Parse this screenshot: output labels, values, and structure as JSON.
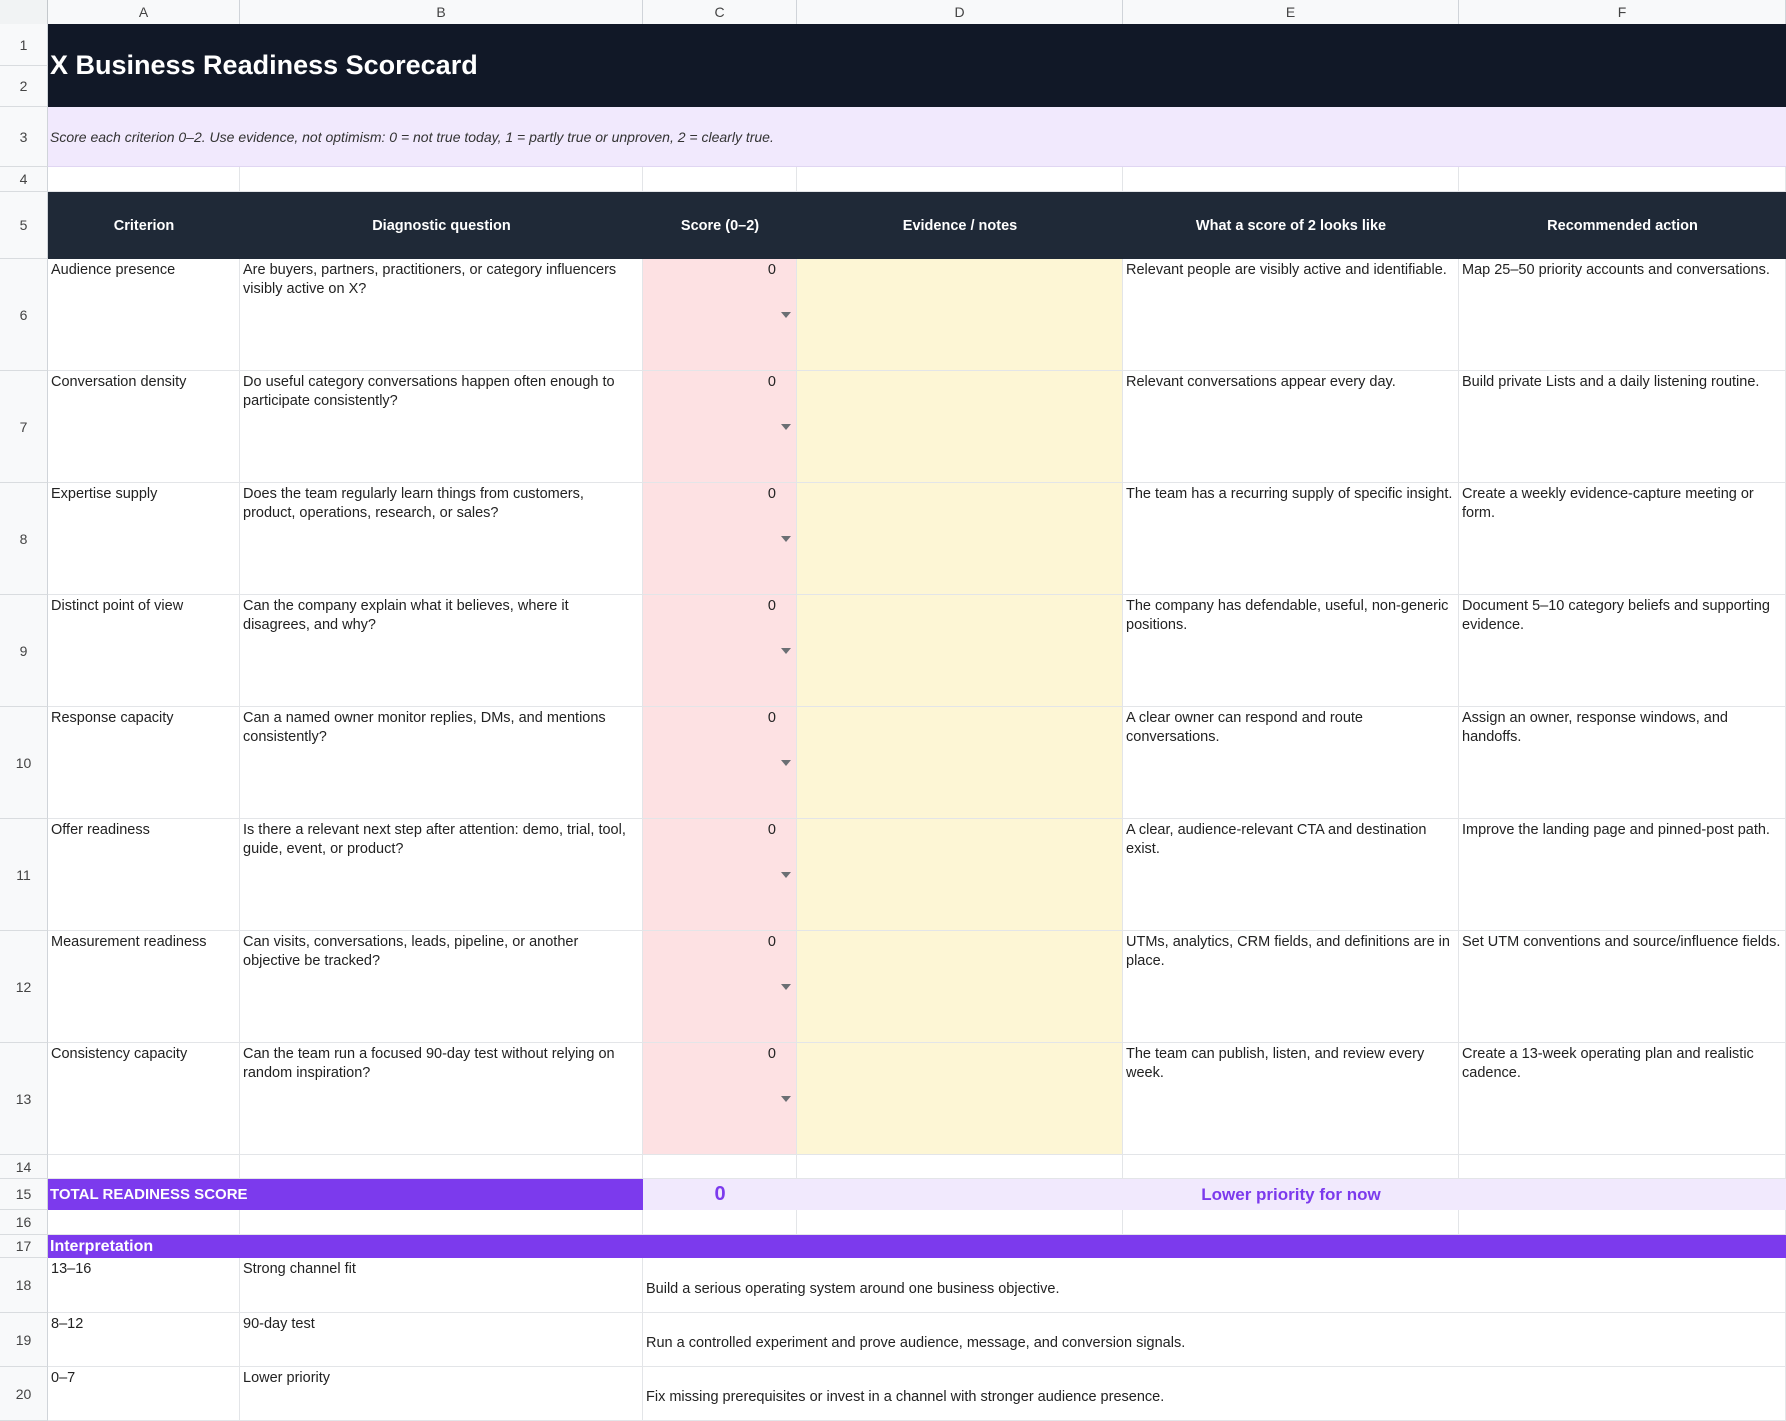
{
  "columns": [
    "A",
    "B",
    "C",
    "D",
    "E",
    "F"
  ],
  "row_numbers": [
    "1",
    "2",
    "3",
    "4",
    "5",
    "6",
    "7",
    "8",
    "9",
    "10",
    "11",
    "12",
    "13",
    "14",
    "15",
    "16",
    "17",
    "18",
    "19",
    "20"
  ],
  "title": "X Business Readiness Scorecard",
  "instructions": "Score each criterion 0–2. Use evidence, not optimism: 0 = not true today, 1 = partly true or unproven, 2 = clearly true.",
  "headers": {
    "criterion": "Criterion",
    "question": "Diagnostic question",
    "score": "Score (0–2)",
    "notes": "Evidence / notes",
    "score2": "What a score of 2 looks like",
    "action": "Recommended action"
  },
  "rows": [
    {
      "criterion": "Audience presence",
      "question": "Are buyers, partners, practitioners, or category influencers visibly active on X?",
      "score": "0",
      "notes": "",
      "score2": "Relevant people are visibly active and identifiable.",
      "action": "Map 25–50 priority accounts and conversations."
    },
    {
      "criterion": "Conversation density",
      "question": "Do useful category conversations happen often enough to participate consistently?",
      "score": "0",
      "notes": "",
      "score2": "Relevant conversations appear every day.",
      "action": "Build private Lists and a daily listening routine."
    },
    {
      "criterion": "Expertise supply",
      "question": "Does the team regularly learn things from customers, product, operations, research, or sales?",
      "score": "0",
      "notes": "",
      "score2": "The team has a recurring supply of specific insight.",
      "action": "Create a weekly evidence-capture meeting or form."
    },
    {
      "criterion": "Distinct point of view",
      "question": "Can the company explain what it believes, where it disagrees, and why?",
      "score": "0",
      "notes": "",
      "score2": "The company has defendable, useful, non-generic positions.",
      "action": "Document 5–10 category beliefs and supporting evidence."
    },
    {
      "criterion": "Response capacity",
      "question": "Can a named owner monitor replies, DMs, and mentions consistently?",
      "score": "0",
      "notes": "",
      "score2": "A clear owner can respond and route conversations.",
      "action": "Assign an owner, response windows, and handoffs."
    },
    {
      "criterion": "Offer readiness",
      "question": "Is there a relevant next step after attention: demo, trial, tool, guide, event, or product?",
      "score": "0",
      "notes": "",
      "score2": "A clear, audience-relevant CTA and destination exist.",
      "action": "Improve the landing page and pinned-post path."
    },
    {
      "criterion": "Measurement readiness",
      "question": "Can visits, conversations, leads, pipeline, or another objective be tracked?",
      "score": "0",
      "notes": "",
      "score2": "UTMs, analytics, CRM fields, and definitions are in place.",
      "action": "Set UTM conventions and source/influence fields."
    },
    {
      "criterion": "Consistency capacity",
      "question": "Can the team run a focused 90-day test without relying on random inspiration?",
      "score": "0",
      "notes": "",
      "score2": "The team can publish, listen, and review every week.",
      "action": "Create a 13-week operating plan and realistic cadence."
    }
  ],
  "total": {
    "label": "TOTAL READINESS SCORE",
    "score": "0",
    "verdict": "Lower priority for now"
  },
  "interpretation": {
    "title": "Interpretation",
    "rows": [
      {
        "range": "13–16",
        "label": "Strong channel fit",
        "desc": "Build a serious operating system around one business objective."
      },
      {
        "range": "8–12",
        "label": "90-day test",
        "desc": "Run a controlled experiment and prove audience, message, and conversion signals."
      },
      {
        "range": "0–7",
        "label": "Lower priority",
        "desc": "Fix missing prerequisites or invest in a channel with stronger audience presence."
      }
    ]
  }
}
